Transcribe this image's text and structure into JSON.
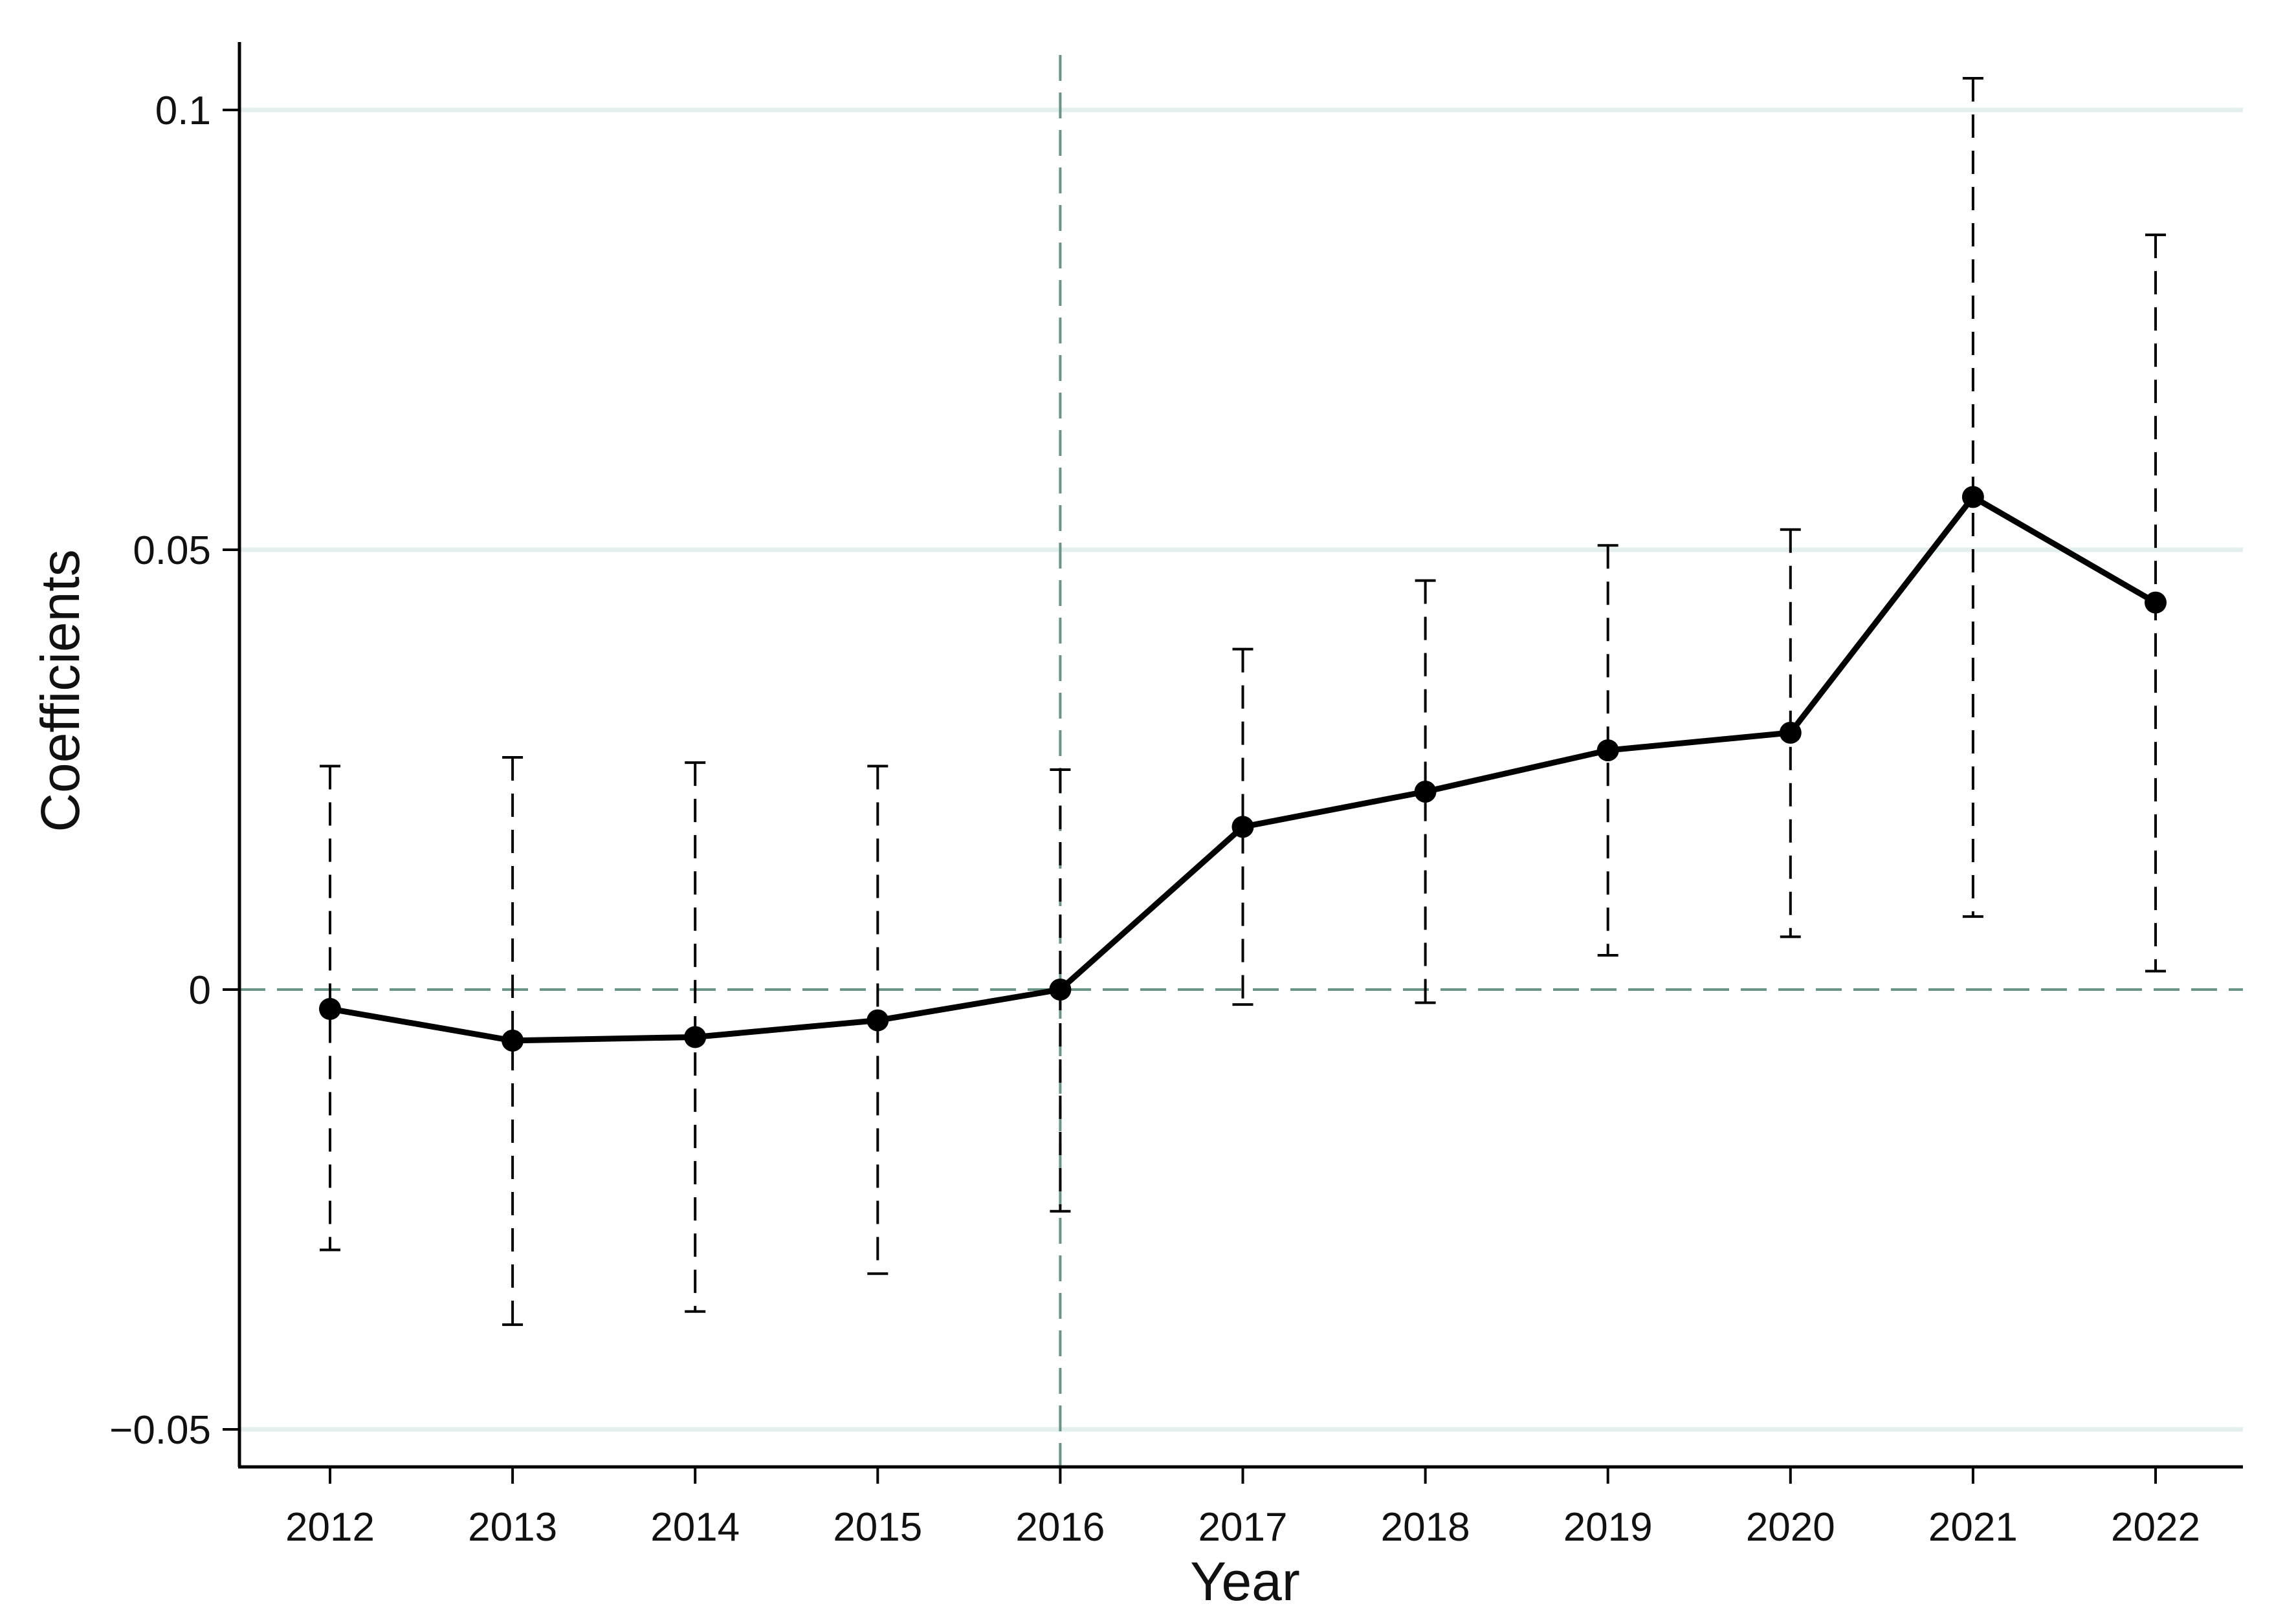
{
  "chart_data": {
    "type": "line",
    "xlabel": "Year",
    "ylabel": "Coefficients",
    "x": [
      "2012",
      "2013",
      "2014",
      "2015",
      "2016",
      "2017",
      "2018",
      "2019",
      "2020",
      "2021",
      "2022"
    ],
    "series": [
      {
        "values": [
          -0.0022,
          -0.0058,
          -0.0054,
          -0.0035,
          0.0,
          0.0185,
          0.0225,
          0.0272,
          0.0292,
          0.056,
          0.044
        ],
        "ci_lower": [
          -0.0296,
          -0.0381,
          -0.0366,
          -0.0323,
          -0.0252,
          -0.0017,
          -0.0015,
          0.0039,
          0.006,
          0.0083,
          0.0021
        ],
        "ci_upper": [
          0.0254,
          0.0264,
          0.0258,
          0.0254,
          0.025,
          0.0387,
          0.0465,
          0.0505,
          0.0523,
          0.1036,
          0.0858
        ]
      }
    ],
    "yticks": [
      -0.05,
      0,
      0.05,
      0.1
    ],
    "ytick_labels": [
      "−0.05",
      "0",
      "0.05",
      "0.1"
    ],
    "ylim": [
      -0.054,
      0.108
    ],
    "reference_lines": {
      "y": 0,
      "x": "2016"
    },
    "grid": true,
    "legend": "none",
    "colors": {
      "line": "#000000",
      "grid": "#e3efee",
      "reference": "#6a9488",
      "error_bar": "#000000"
    }
  }
}
